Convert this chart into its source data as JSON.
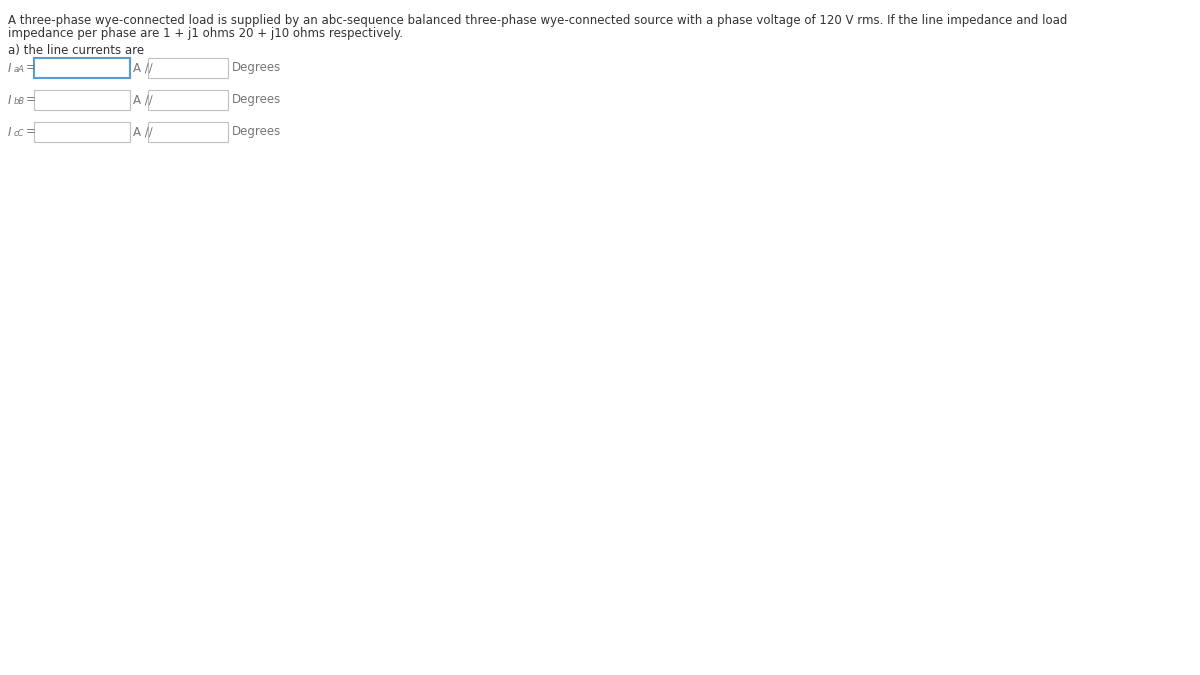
{
  "background_color": "#ffffff",
  "line1": "A three-phase wye-connected load is supplied by an abc-sequence balanced three-phase wye-connected source with a phase voltage of 120 V rms. If the line impedance and load",
  "line2": "impedance per phase are 1 + j1 ohms 20 + j10 ohms respectively.",
  "subtitle": "a) the line currents are",
  "rows": [
    {
      "label_plain": "I",
      "label_sub": "aA",
      "label_eq": "="
    },
    {
      "label_plain": "I",
      "label_sub": "bB",
      "label_eq": "="
    },
    {
      "label_plain": "I",
      "label_sub": "cC",
      "label_eq": "="
    }
  ],
  "unit_text": "A /∕",
  "degrees_text": "Degrees",
  "title_fontsize": 8.5,
  "subtitle_fontsize": 8.5,
  "label_fontsize": 8.5,
  "unit_fontsize": 8.5,
  "degrees_fontsize": 8.5,
  "box_facecolor": "#ffffff",
  "box_edgecolor_active": "#5b9bd5",
  "box_edgecolor_normal": "#c0c0c0",
  "text_color": "#555555",
  "label_color": "#777777"
}
